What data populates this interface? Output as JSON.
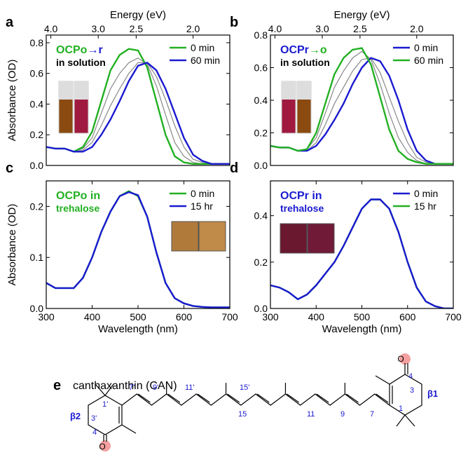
{
  "chart_data": [
    {
      "type": "line",
      "panel": "a",
      "x2label": "Energy (eV)",
      "x2ticks": [
        {
          "value": 4,
          "label": "4.0"
        },
        {
          "value": 3,
          "label": "3.0"
        },
        2.5,
        {
          "value": 2,
          "label": "2.0"
        }
      ],
      "ylabel": "Absorbance (OD)",
      "annotation": [
        [
          {
            "text": "OCPo",
            "color": "#22b022"
          },
          {
            "text": "→r",
            "color": "#1a1ad0"
          }
        ],
        [
          {
            "text": "in solution",
            "color": "#000000"
          }
        ]
      ],
      "x": [
        300,
        320,
        340,
        360,
        380,
        400,
        420,
        440,
        460,
        480,
        500,
        520,
        540,
        560,
        580,
        600,
        620,
        640,
        660,
        680,
        700
      ],
      "xlim": [
        300,
        700
      ],
      "ylim": [
        0,
        0.85
      ],
      "yticks": [
        {
          "value": 0,
          "label": "0.0"
        },
        0.2,
        0.4,
        0.6,
        0.8
      ],
      "series": [
        {
          "color": "#888888",
          "values": [
            0.12,
            0.11,
            0.11,
            0.09,
            0.11,
            0.18,
            0.34,
            0.5,
            0.6,
            0.67,
            0.7,
            0.66,
            0.52,
            0.33,
            0.15,
            0.06,
            0.02,
            0.01,
            0.01,
            0.01,
            0.01
          ]
        },
        {
          "color": "#888888",
          "values": [
            0.12,
            0.11,
            0.11,
            0.09,
            0.1,
            0.15,
            0.26,
            0.39,
            0.5,
            0.6,
            0.67,
            0.67,
            0.58,
            0.43,
            0.26,
            0.12,
            0.04,
            0.02,
            0.01,
            0.01,
            0.01
          ]
        },
        {
          "name": "0 min",
          "color": "#22b022",
          "values": [
            0.12,
            0.11,
            0.11,
            0.09,
            0.12,
            0.22,
            0.42,
            0.62,
            0.72,
            0.76,
            0.75,
            0.64,
            0.42,
            0.2,
            0.06,
            0.02,
            0.01,
            0.01,
            0.01,
            0.01,
            0.01
          ]
        },
        {
          "name": "60 min",
          "color": "#1a1ad0",
          "values": [
            0.12,
            0.11,
            0.11,
            0.09,
            0.09,
            0.12,
            0.2,
            0.3,
            0.42,
            0.55,
            0.65,
            0.67,
            0.62,
            0.5,
            0.34,
            0.18,
            0.07,
            0.03,
            0.01,
            0.01,
            0.01
          ]
        }
      ]
    },
    {
      "type": "line",
      "panel": "b",
      "x2label": "Energy (eV)",
      "x2ticks": [
        {
          "value": 4,
          "label": "4.0"
        },
        {
          "value": 3,
          "label": "3.0"
        },
        2.5,
        {
          "value": 2,
          "label": "2.0"
        }
      ],
      "annotation": [
        [
          {
            "text": "OCPr",
            "color": "#1a1ad0"
          },
          {
            "text": "→o",
            "color": "#22b022"
          }
        ],
        [
          {
            "text": "in solution",
            "color": "#000000"
          }
        ]
      ],
      "x": [
        300,
        320,
        340,
        360,
        380,
        400,
        420,
        440,
        460,
        480,
        500,
        520,
        540,
        560,
        580,
        600,
        620,
        640,
        660,
        680,
        700
      ],
      "xlim": [
        300,
        700
      ],
      "ylim": [
        0,
        0.8
      ],
      "yticks": [
        {
          "value": 0,
          "label": "0.0"
        },
        0.2,
        0.4,
        0.6,
        0.8
      ],
      "series": [
        {
          "color": "#888888",
          "values": [
            0.12,
            0.11,
            0.11,
            0.09,
            0.09,
            0.14,
            0.25,
            0.38,
            0.48,
            0.58,
            0.65,
            0.66,
            0.57,
            0.42,
            0.27,
            0.14,
            0.05,
            0.02,
            0.01,
            0.01,
            0.01
          ]
        },
        {
          "color": "#888888",
          "values": [
            0.12,
            0.11,
            0.11,
            0.09,
            0.1,
            0.17,
            0.32,
            0.48,
            0.58,
            0.66,
            0.7,
            0.65,
            0.5,
            0.32,
            0.17,
            0.08,
            0.03,
            0.01,
            0.01,
            0.01,
            0.01
          ]
        },
        {
          "name": "0 min",
          "color": "#1a1ad0",
          "values": [
            0.12,
            0.11,
            0.11,
            0.09,
            0.09,
            0.12,
            0.19,
            0.28,
            0.38,
            0.5,
            0.6,
            0.66,
            0.64,
            0.55,
            0.4,
            0.22,
            0.09,
            0.03,
            0.01,
            0.01,
            0.01
          ]
        },
        {
          "name": "60 min",
          "color": "#22b022",
          "values": [
            0.12,
            0.11,
            0.11,
            0.09,
            0.1,
            0.2,
            0.38,
            0.56,
            0.66,
            0.71,
            0.72,
            0.62,
            0.42,
            0.22,
            0.09,
            0.04,
            0.02,
            0.01,
            0.01,
            0.01,
            0.01
          ]
        }
      ]
    },
    {
      "type": "line",
      "panel": "c",
      "ylabel": "Absorbance (OD)",
      "xlabel": "Wavelength (nm)",
      "annotation": [
        [
          {
            "text": "OCPo in",
            "color": "#22b022"
          }
        ],
        [
          {
            "text": "trehalose",
            "color": "#22b022"
          }
        ]
      ],
      "x": [
        300,
        320,
        340,
        360,
        380,
        400,
        420,
        440,
        460,
        480,
        500,
        520,
        540,
        560,
        580,
        600,
        620,
        640,
        660,
        680,
        700
      ],
      "xlim": [
        300,
        700
      ],
      "xticks": [
        300,
        400,
        500,
        600,
        700
      ],
      "ylim": [
        0,
        0.25
      ],
      "yticks": [
        {
          "value": 0,
          "label": "0.0"
        },
        0.1,
        0.2
      ],
      "series": [
        {
          "name": "0 min",
          "color": "#22b022",
          "values": [
            0.05,
            0.04,
            0.04,
            0.04,
            0.06,
            0.1,
            0.15,
            0.19,
            0.22,
            0.23,
            0.22,
            0.18,
            0.11,
            0.05,
            0.02,
            0.01,
            0.005,
            0.003,
            0.002,
            0.002,
            0.002
          ]
        },
        {
          "name": "15 hr",
          "color": "#1a1ad0",
          "values": [
            0.05,
            0.04,
            0.04,
            0.04,
            0.06,
            0.1,
            0.15,
            0.19,
            0.22,
            0.228,
            0.222,
            0.18,
            0.11,
            0.05,
            0.02,
            0.01,
            0.005,
            0.003,
            0.002,
            0.002,
            0.002
          ]
        }
      ]
    },
    {
      "type": "line",
      "panel": "d",
      "xlabel": "Wavelength (nm)",
      "annotation": [
        [
          {
            "text": "OCPr in",
            "color": "#1a1ad0"
          }
        ],
        [
          {
            "text": "trehalose",
            "color": "#1a1ad0"
          }
        ]
      ],
      "x": [
        300,
        320,
        340,
        360,
        380,
        400,
        420,
        440,
        460,
        480,
        500,
        520,
        540,
        560,
        580,
        600,
        620,
        640,
        660,
        680,
        700
      ],
      "xlim": [
        300,
        700
      ],
      "xticks": [
        300,
        400,
        500,
        600,
        700
      ],
      "ylim": [
        0,
        0.55
      ],
      "yticks": [
        {
          "value": 0,
          "label": "0.0"
        },
        0.2,
        0.4
      ],
      "series": [
        {
          "name": "15 hr",
          "color": "#22b022",
          "legend_order": 1,
          "values": [
            0.1,
            0.09,
            0.07,
            0.04,
            0.06,
            0.1,
            0.15,
            0.2,
            0.27,
            0.35,
            0.43,
            0.47,
            0.47,
            0.43,
            0.33,
            0.2,
            0.09,
            0.03,
            0.01,
            0,
            0
          ]
        },
        {
          "name": "0 min",
          "color": "#1a1ad0",
          "legend_order": 0,
          "values": [
            0.1,
            0.09,
            0.07,
            0.04,
            0.06,
            0.1,
            0.15,
            0.2,
            0.27,
            0.35,
            0.43,
            0.47,
            0.47,
            0.43,
            0.33,
            0.2,
            0.09,
            0.03,
            0.01,
            0,
            0
          ]
        }
      ]
    }
  ],
  "molecule": {
    "panel": "e",
    "title": "canthaxanthin (CAN)",
    "oxygen": "O",
    "ring_labels": [
      "β1",
      "β2"
    ],
    "atom_labels": [
      "1",
      "3",
      "4",
      "7",
      "9",
      "11",
      "15",
      "15'",
      "11'",
      "9'",
      "7'",
      "1'",
      "3'",
      "4'"
    ]
  }
}
